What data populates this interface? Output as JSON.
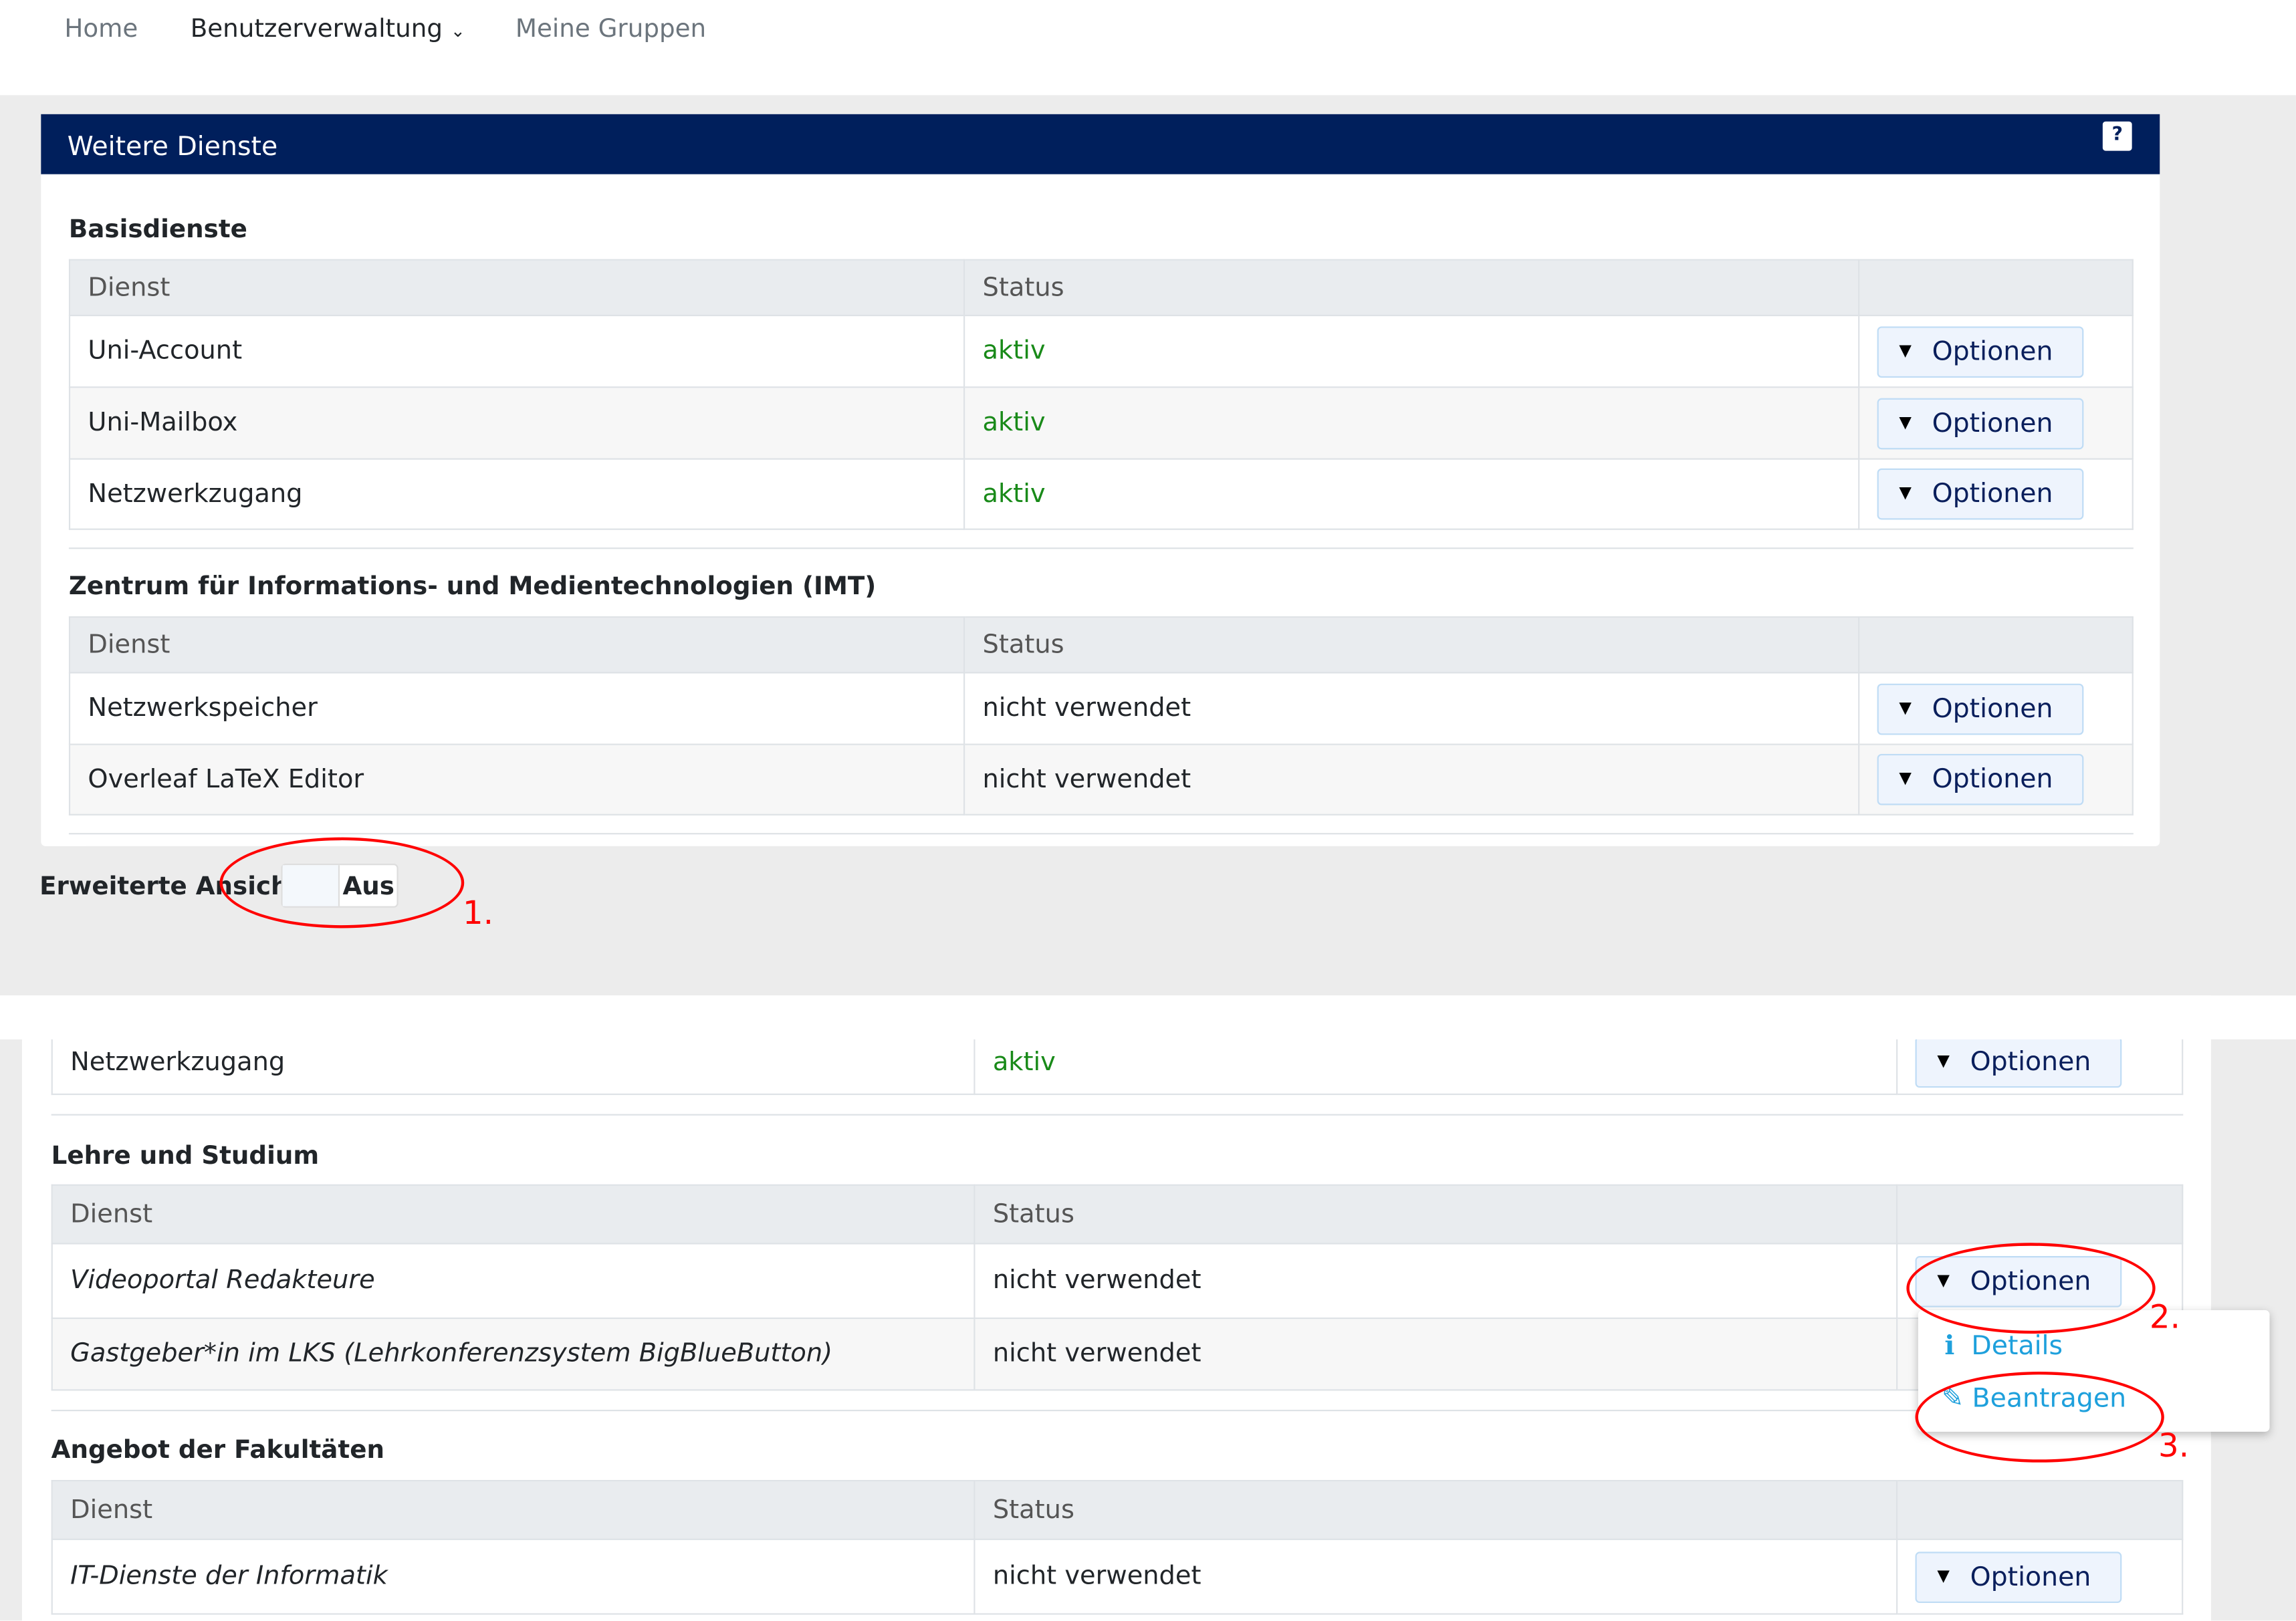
{
  "nav": {
    "items": [
      "Home",
      "Benutzerverwaltung",
      "Meine Gruppen"
    ]
  },
  "panel": {
    "title": "Weitere Dienste",
    "help": "?"
  },
  "columns": {
    "dienst": "Dienst",
    "status": "Status"
  },
  "option_label": "Optionen",
  "sections_top": [
    {
      "title": "Basisdienste",
      "rows": [
        {
          "name": "Uni-Account",
          "status": "aktiv"
        },
        {
          "name": "Uni-Mailbox",
          "status": "aktiv"
        },
        {
          "name": "Netzwerkzugang",
          "status": "aktiv"
        }
      ]
    },
    {
      "title": "Zentrum für Informations- und Medientechnologien (IMT)",
      "rows": [
        {
          "name": "Netzwerkspeicher",
          "status": "nicht verwendet"
        },
        {
          "name": "Overleaf LaTeX Editor",
          "status": "nicht verwendet"
        }
      ]
    }
  ],
  "toggle": {
    "label": "Erweiterte Ansicht",
    "value": "Aus"
  },
  "bottom": {
    "partial_row": {
      "name": "Netzwerkzugang",
      "status": "aktiv"
    },
    "sections": [
      {
        "title": "Lehre und Studium",
        "rows": [
          {
            "name": "Videoportal Redakteure",
            "status": "nicht verwendet"
          },
          {
            "name": "Gastgeber*in im LKS (Lehrkonferenzsystem BigBlueButton)",
            "status": "nicht verwendet"
          }
        ]
      },
      {
        "title": "Angebot der Fakultäten",
        "rows": [
          {
            "name": "IT-Dienste der Informatik",
            "status": "nicht verwendet"
          }
        ]
      }
    ],
    "menu": [
      "Details",
      "Beantragen"
    ]
  },
  "annotations": [
    "1.",
    "2.",
    "3."
  ]
}
